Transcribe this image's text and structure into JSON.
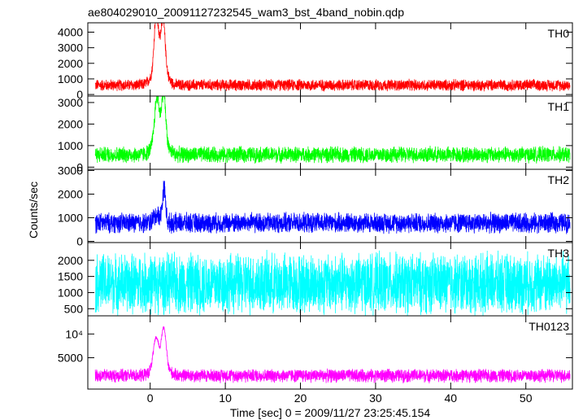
{
  "chart_data": {
    "type": "line",
    "title": "ae804029010_20091127232545_wam3_bst_4band_nobin.qdp",
    "xlabel": "Time [sec] 0 = 2009/11/27 23:25:45.154",
    "ylabel": "Counts/sec",
    "xlim": [
      -8.3,
      56.2
    ],
    "x_ticks": [
      0,
      10,
      20,
      30,
      40,
      50
    ],
    "x_tick_labels": [
      "0",
      "10",
      "20",
      "30",
      "40",
      "50"
    ],
    "panels": [
      {
        "name": "TH0",
        "color": "#ff0000",
        "ylim": [
          -100,
          4600
        ],
        "y_ticks": [
          0,
          1000,
          2000,
          3000,
          4000
        ],
        "y_tick_labels": [
          "0",
          "1000",
          "2000",
          "3000",
          "4000"
        ],
        "baseline": 600,
        "noise": 420,
        "peaks": [
          [
            0.8,
            3400,
            0.25
          ],
          [
            1.7,
            3000,
            0.3
          ],
          [
            1.2,
            1500,
            0.8
          ]
        ]
      },
      {
        "name": "TH1",
        "color": "#00ff00",
        "ylim": [
          -100,
          3300
        ],
        "y_ticks": [
          0,
          1000,
          2000,
          3000
        ],
        "y_tick_labels": [
          "0",
          "1000",
          "2000",
          "3000"
        ],
        "baseline": 580,
        "noise": 420,
        "peaks": [
          [
            0.9,
            1900,
            0.3
          ],
          [
            1.8,
            2200,
            0.25
          ],
          [
            1.3,
            900,
            0.8
          ]
        ]
      },
      {
        "name": "TH2",
        "color": "#0000ff",
        "ylim": [
          -50,
          3050
        ],
        "y_ticks": [
          0,
          1000,
          2000,
          3000
        ],
        "y_tick_labels": [
          "0",
          "1000",
          "2000",
          "3000"
        ],
        "baseline": 780,
        "noise": 480,
        "peaks": [
          [
            1.85,
            1400,
            0.2
          ],
          [
            1.0,
            350,
            0.5
          ]
        ]
      },
      {
        "name": "TH3",
        "color": "#00ffff",
        "ylim": [
          280,
          2550
        ],
        "y_ticks": [
          500,
          1000,
          1500,
          2000
        ],
        "y_tick_labels": [
          "500",
          "1000",
          "1500",
          "2000"
        ],
        "baseline": 1280,
        "noise": 1050,
        "peaks": []
      },
      {
        "name": "TH0123",
        "color": "#ff00ff",
        "log": true,
        "ylim": [
          2000,
          17000
        ],
        "y_ticks": [
          5000,
          10000
        ],
        "y_tick_labels": [
          "5000",
          "10⁴"
        ],
        "baseline": 3000,
        "noise": 650,
        "peaks": [
          [
            0.8,
            4500,
            0.3
          ],
          [
            1.8,
            7500,
            0.25
          ],
          [
            1.3,
            1800,
            0.8
          ]
        ]
      }
    ]
  }
}
